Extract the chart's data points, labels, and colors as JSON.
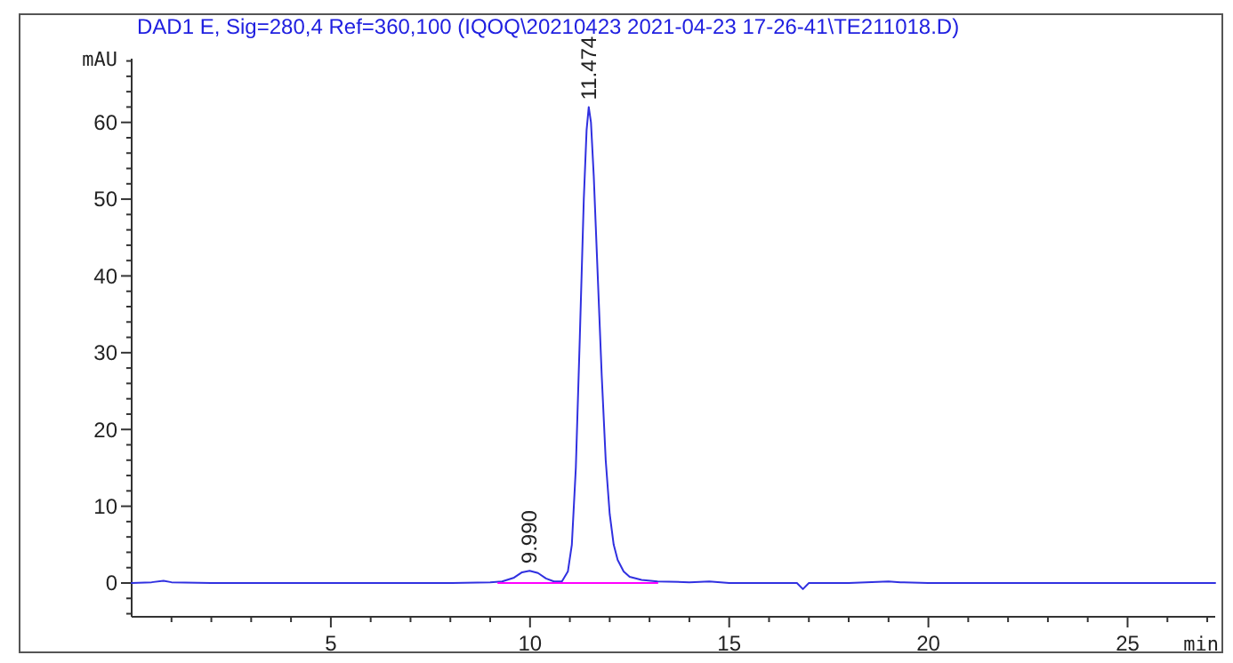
{
  "chart_data": {
    "type": "line",
    "title": "DAD1 E, Sig=280,4 Ref=360,100 (IQOQ\\20210423 2021-04-23 17-26-41\\TE211018.D)",
    "xlabel": "min",
    "ylabel": "mAU",
    "xlim": [
      0,
      27.2
    ],
    "ylim": [
      -4.4,
      68.3
    ],
    "xticks": [
      {
        "value": 1,
        "label": null
      },
      {
        "value": 2,
        "label": null
      },
      {
        "value": 3,
        "label": null
      },
      {
        "value": 4,
        "label": null
      },
      5,
      {
        "value": 6,
        "label": null
      },
      {
        "value": 7,
        "label": null
      },
      {
        "value": 8,
        "label": null
      },
      {
        "value": 9,
        "label": null
      },
      10,
      {
        "value": 11,
        "label": null
      },
      {
        "value": 12,
        "label": null
      },
      {
        "value": 13,
        "label": null
      },
      {
        "value": 14,
        "label": null
      },
      15,
      {
        "value": 16,
        "label": null
      },
      {
        "value": 17,
        "label": null
      },
      {
        "value": 18,
        "label": null
      },
      {
        "value": 19,
        "label": null
      },
      20,
      {
        "value": 21,
        "label": null
      },
      {
        "value": 22,
        "label": null
      },
      {
        "value": 23,
        "label": null
      },
      {
        "value": 24,
        "label": null
      },
      25,
      {
        "value": 26,
        "label": null
      },
      {
        "value": 27,
        "label": null
      }
    ],
    "yticks": [
      {
        "value": -4,
        "label": null
      },
      {
        "value": -2,
        "label": null
      },
      0,
      {
        "value": 2,
        "label": null
      },
      {
        "value": 4,
        "label": null
      },
      {
        "value": 6,
        "label": null
      },
      {
        "value": 8,
        "label": null
      },
      10,
      {
        "value": 12,
        "label": null
      },
      {
        "value": 14,
        "label": null
      },
      {
        "value": 16,
        "label": null
      },
      {
        "value": 18,
        "label": null
      },
      20,
      {
        "value": 22,
        "label": null
      },
      {
        "value": 24,
        "label": null
      },
      {
        "value": 26,
        "label": null
      },
      {
        "value": 28,
        "label": null
      },
      30,
      {
        "value": 32,
        "label": null
      },
      {
        "value": 34,
        "label": null
      },
      {
        "value": 36,
        "label": null
      },
      {
        "value": 38,
        "label": null
      },
      40,
      {
        "value": 42,
        "label": null
      },
      {
        "value": 44,
        "label": null
      },
      {
        "value": 46,
        "label": null
      },
      {
        "value": 48,
        "label": null
      },
      50,
      {
        "value": 52,
        "label": null
      },
      {
        "value": 54,
        "label": null
      },
      {
        "value": 56,
        "label": null
      },
      {
        "value": 58,
        "label": null
      },
      60,
      {
        "value": 62,
        "label": null
      },
      {
        "value": 64,
        "label": null
      },
      {
        "value": 66,
        "label": null
      },
      {
        "value": 68,
        "label": null
      }
    ],
    "grid": false,
    "marker": "none",
    "line_style": "solid",
    "series": [
      {
        "color": "#3030e0",
        "x": [
          0,
          0.5,
          0.8,
          1.0,
          2,
          4,
          6,
          8,
          9.0,
          9.3,
          9.6,
          9.8,
          9.99,
          10.2,
          10.4,
          10.6,
          10.8,
          10.95,
          11.05,
          11.15,
          11.25,
          11.35,
          11.42,
          11.474,
          11.53,
          11.6,
          11.7,
          11.8,
          11.9,
          12.0,
          12.1,
          12.2,
          12.35,
          12.5,
          12.8,
          13.2,
          14,
          14.5,
          15,
          16,
          16.7,
          16.85,
          17.0,
          18,
          19,
          19.3,
          20,
          22,
          24,
          26,
          27.2
        ],
        "values": [
          0,
          0.1,
          0.3,
          0.1,
          0,
          0,
          0,
          0,
          0.1,
          0.2,
          0.7,
          1.4,
          1.6,
          1.3,
          0.6,
          0.2,
          0.2,
          1.5,
          5,
          15,
          32,
          50,
          59,
          62,
          60,
          53,
          40,
          27,
          16,
          9,
          5,
          3,
          1.5,
          0.8,
          0.4,
          0.2,
          0.1,
          0.2,
          0,
          0,
          0,
          -0.8,
          0,
          0,
          0.2,
          0.1,
          0,
          0,
          0,
          0,
          0
        ]
      },
      {
        "color": "#ff00ff",
        "x": [
          9.2,
          13.2
        ],
        "values": [
          0,
          0
        ]
      }
    ],
    "annotations": [
      {
        "text": "9.990",
        "x": 9.99,
        "y": 1.6
      },
      {
        "text": "11.474",
        "x": 11.474,
        "y": 62
      }
    ]
  }
}
